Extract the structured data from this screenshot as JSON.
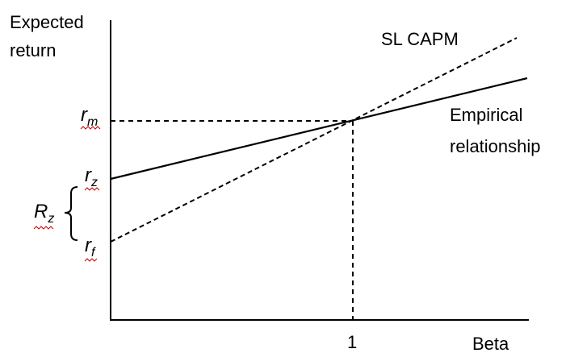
{
  "axes": {
    "y_label": [
      "Expected",
      "return"
    ],
    "x_label": "Beta",
    "x_tick": "1"
  },
  "levels": [
    {
      "symbol": "r",
      "subscript": "m"
    },
    {
      "symbol": "r",
      "subscript": "z"
    },
    {
      "symbol": "r",
      "subscript": "f"
    }
  ],
  "bracket": {
    "symbol": "R",
    "subscript": "z"
  },
  "lines": [
    {
      "label": [
        "SL CAPM"
      ]
    },
    {
      "label": [
        "Empirical",
        "relationship"
      ]
    }
  ]
}
